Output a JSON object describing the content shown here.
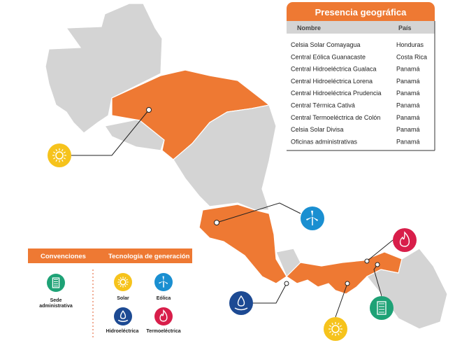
{
  "table": {
    "title": "Presencia geográfica",
    "columns": [
      "Nombre",
      "País"
    ],
    "rows": [
      [
        "Celsia Solar Comayagua",
        "Honduras"
      ],
      [
        "Central Eólica Guanacaste",
        "Costa Rica"
      ],
      [
        "Central Hidroeléctrica Gualaca",
        "Panamá"
      ],
      [
        "Central Hidroeléctrica Lorena",
        "Panamá"
      ],
      [
        "Central Hidroeléctrica Prudencia",
        "Panamá"
      ],
      [
        "Central Térmica Cativá",
        "Panamá"
      ],
      [
        "Central Termoeléctrica de Colón",
        "Panamá"
      ],
      [
        "Celsia Solar Divisa",
        "Panamá"
      ],
      [
        "Oficinas administrativas",
        "Panamá"
      ]
    ]
  },
  "legend": {
    "conventions_title": "Convenciones",
    "technology_title": "Tecnología de generación",
    "conventions": [
      "Sede administrativa"
    ],
    "technologies": [
      "Solar",
      "Eólica",
      "Hidroeléctrica",
      "Termoeléctrica"
    ]
  }
}
